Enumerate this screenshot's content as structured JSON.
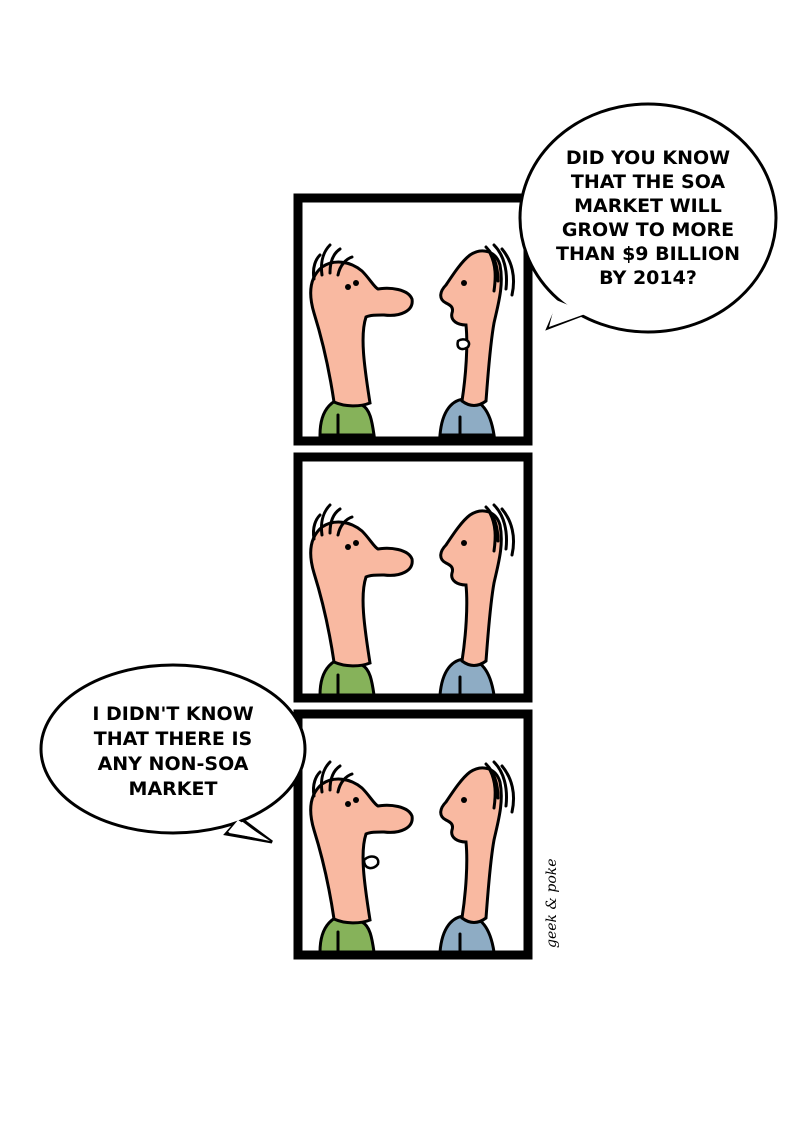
{
  "comic": {
    "bubble_top": {
      "lines": [
        "DID YOU KNOW",
        "THAT THE SOA",
        "MARKET WILL",
        "GROW TO MORE",
        "THAN $9 BILLION",
        "BY 2014?"
      ]
    },
    "bubble_bottom": {
      "lines": [
        "I DIDN'T KNOW",
        "THAT THERE IS",
        "ANY NON-SOA",
        "MARKET"
      ]
    },
    "credit": "geek & poke",
    "colors": {
      "skin": "#f9b9a1",
      "shirt_left": "#86b25a",
      "shirt_right": "#8eacc4",
      "frame": "#000000"
    }
  }
}
